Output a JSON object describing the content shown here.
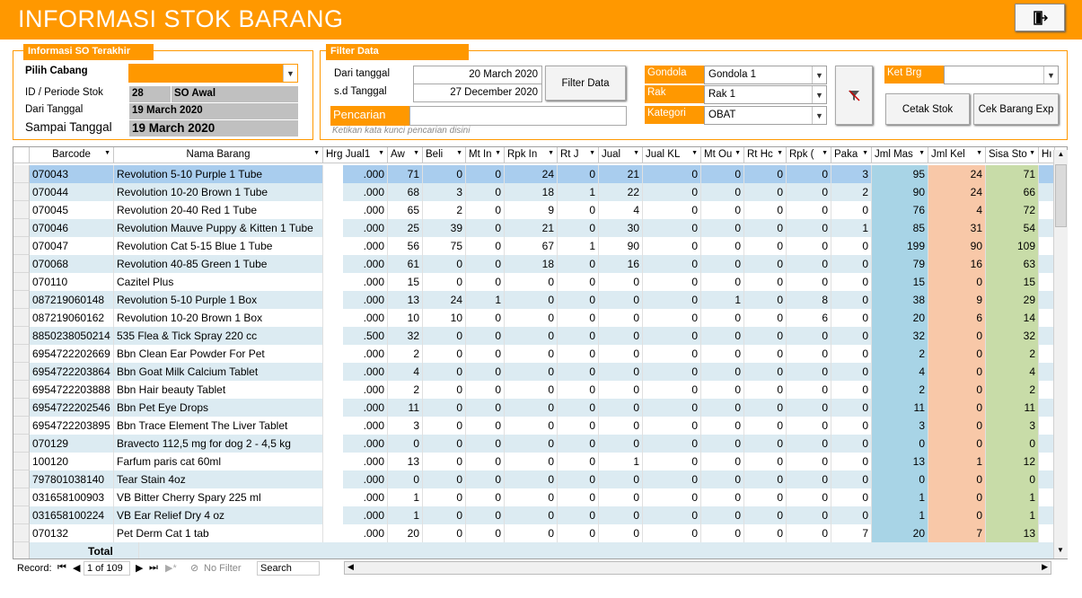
{
  "app": {
    "title": "INFORMASI STOK BARANG",
    "exit_icon": "exit-door-icon"
  },
  "so_panel": {
    "title": "Informasi SO Terakhir",
    "pilih_cabang_label": "Pilih Cabang",
    "cabang_value": "",
    "id_periode_label": "ID / Periode Stok",
    "id_value": "28",
    "periode_value": "SO Awal",
    "dari_tanggal_label": "Dari Tanggal",
    "dari_tanggal_value": "19 March 2020",
    "sampai_tanggal_label": "Sampai Tanggal",
    "sampai_tanggal_value": "19 March 2020"
  },
  "filter_panel": {
    "title": "Filter Data",
    "dari_label": "Dari tanggal",
    "dari_value": "20 March 2020",
    "sd_label": "s.d Tanggal",
    "sd_value": "27 December 2020",
    "filter_button": "Filter Data",
    "pencarian_label": "Pencarian",
    "pencarian_value": "",
    "pencarian_hint": "Ketikan kata kunci pencarian disini",
    "gondola_label": "Gondola",
    "gondola_value": "Gondola 1",
    "rak_label": "Rak",
    "rak_value": "Rak 1",
    "kategori_label": "Kategori",
    "kategori_value": "OBAT",
    "clear_filter_icon": "clear-filter-icon",
    "ket_brg_label": "Ket Brg",
    "ket_brg_value": "",
    "cetak_stok_button": "Cetak Stok",
    "cek_barang_exp_button": "Cek Barang Exp"
  },
  "grid": {
    "columns": [
      "Barcode",
      "Nama Barang",
      "Hrg Jual1",
      "Aw",
      "Beli",
      "Mt In",
      "Rpk In",
      "Rt J",
      "Jual",
      "Jual KL",
      "Mt Ou",
      "Rt Hc",
      "Rpk (",
      "Paka",
      "Jml Mas",
      "Jml Kel",
      "Sisa Sto",
      "Hı"
    ],
    "rows": [
      [
        "070043",
        "Revolution 5-10 Purple 1 Tube",
        ".000",
        "71",
        "0",
        "0",
        "24",
        "0",
        "21",
        "0",
        "0",
        "0",
        "0",
        "3",
        "95",
        "24",
        "71"
      ],
      [
        "070044",
        "Revolution 10-20 Brown 1 Tube",
        ".000",
        "68",
        "3",
        "0",
        "18",
        "1",
        "22",
        "0",
        "0",
        "0",
        "0",
        "2",
        "90",
        "24",
        "66"
      ],
      [
        "070045",
        "Revolution 20-40 Red 1 Tube",
        ".000",
        "65",
        "2",
        "0",
        "9",
        "0",
        "4",
        "0",
        "0",
        "0",
        "0",
        "0",
        "76",
        "4",
        "72"
      ],
      [
        "070046",
        "Revolution Mauve Puppy & Kitten 1 Tube",
        ".000",
        "25",
        "39",
        "0",
        "21",
        "0",
        "30",
        "0",
        "0",
        "0",
        "0",
        "1",
        "85",
        "31",
        "54"
      ],
      [
        "070047",
        "Revolution Cat 5-15 Blue 1 Tube",
        ".000",
        "56",
        "75",
        "0",
        "67",
        "1",
        "90",
        "0",
        "0",
        "0",
        "0",
        "0",
        "199",
        "90",
        "109"
      ],
      [
        "070068",
        "Revolution 40-85 Green 1 Tube",
        ".000",
        "61",
        "0",
        "0",
        "18",
        "0",
        "16",
        "0",
        "0",
        "0",
        "0",
        "0",
        "79",
        "16",
        "63"
      ],
      [
        "070110",
        "Cazitel Plus",
        ".000",
        "15",
        "0",
        "0",
        "0",
        "0",
        "0",
        "0",
        "0",
        "0",
        "0",
        "0",
        "15",
        "0",
        "15"
      ],
      [
        "087219060148",
        "Revolution 5-10 Purple 1 Box",
        ".000",
        "13",
        "24",
        "1",
        "0",
        "0",
        "0",
        "0",
        "1",
        "0",
        "8",
        "0",
        "38",
        "9",
        "29"
      ],
      [
        "087219060162",
        "Revolution 10-20 Brown 1 Box",
        ".000",
        "10",
        "10",
        "0",
        "0",
        "0",
        "0",
        "0",
        "0",
        "0",
        "6",
        "0",
        "20",
        "6",
        "14"
      ],
      [
        "8850238050214",
        "535 Flea & Tick Spray 220 cc",
        ".500",
        "32",
        "0",
        "0",
        "0",
        "0",
        "0",
        "0",
        "0",
        "0",
        "0",
        "0",
        "32",
        "0",
        "32"
      ],
      [
        "6954722202669",
        "Bbn Clean Ear Powder For Pet",
        ".000",
        "2",
        "0",
        "0",
        "0",
        "0",
        "0",
        "0",
        "0",
        "0",
        "0",
        "0",
        "2",
        "0",
        "2"
      ],
      [
        "6954722203864",
        "Bbn Goat Milk Calcium Tablet",
        ".000",
        "4",
        "0",
        "0",
        "0",
        "0",
        "0",
        "0",
        "0",
        "0",
        "0",
        "0",
        "4",
        "0",
        "4"
      ],
      [
        "6954722203888",
        "Bbn Hair beauty Tablet",
        ".000",
        "2",
        "0",
        "0",
        "0",
        "0",
        "0",
        "0",
        "0",
        "0",
        "0",
        "0",
        "2",
        "0",
        "2"
      ],
      [
        "6954722202546",
        "Bbn Pet Eye Drops",
        ".000",
        "11",
        "0",
        "0",
        "0",
        "0",
        "0",
        "0",
        "0",
        "0",
        "0",
        "0",
        "11",
        "0",
        "11"
      ],
      [
        "6954722203895",
        "Bbn Trace Element The Liver Tablet",
        ".000",
        "3",
        "0",
        "0",
        "0",
        "0",
        "0",
        "0",
        "0",
        "0",
        "0",
        "0",
        "3",
        "0",
        "3"
      ],
      [
        "070129",
        "Bravecto 112,5 mg for dog 2 - 4,5 kg",
        ".000",
        "0",
        "0",
        "0",
        "0",
        "0",
        "0",
        "0",
        "0",
        "0",
        "0",
        "0",
        "0",
        "0",
        "0"
      ],
      [
        "100120",
        "Farfum paris cat 60ml",
        ".000",
        "13",
        "0",
        "0",
        "0",
        "0",
        "1",
        "0",
        "0",
        "0",
        "0",
        "0",
        "13",
        "1",
        "12"
      ],
      [
        "797801038140",
        "Tear Stain 4oz",
        ".000",
        "0",
        "0",
        "0",
        "0",
        "0",
        "0",
        "0",
        "0",
        "0",
        "0",
        "0",
        "0",
        "0",
        "0"
      ],
      [
        "031658100903",
        "VB Bitter Cherry Spary 225 ml",
        ".000",
        "1",
        "0",
        "0",
        "0",
        "0",
        "0",
        "0",
        "0",
        "0",
        "0",
        "0",
        "1",
        "0",
        "1"
      ],
      [
        "031658100224",
        "VB Ear Relief Dry 4 oz",
        ".000",
        "1",
        "0",
        "0",
        "0",
        "0",
        "0",
        "0",
        "0",
        "0",
        "0",
        "0",
        "1",
        "0",
        "1"
      ],
      [
        "070132",
        "Pet Derm Cat 1 tab",
        ".000",
        "20",
        "0",
        "0",
        "0",
        "0",
        "0",
        "0",
        "0",
        "0",
        "0",
        "7",
        "20",
        "7",
        "13"
      ]
    ],
    "total_label": "Total"
  },
  "nav": {
    "record_label": "Record:",
    "record_value": "1 of 109",
    "no_filter": "No Filter",
    "search": "Search"
  },
  "colors": {
    "accent": "#ff9800",
    "masuk": "#a8d4e6",
    "keluar": "#f8c8a8",
    "sisa": "#c8dca8",
    "row_alt": "#dcebf2",
    "row_selected": "#a9cdee"
  }
}
